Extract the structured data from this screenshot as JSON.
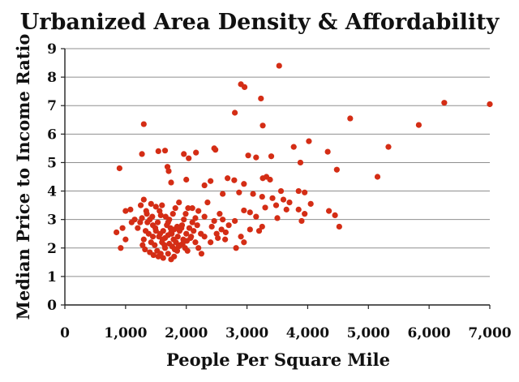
{
  "chart_data": {
    "type": "scatter",
    "title": "Urbanized Area Density & Affordability",
    "xlabel": "People Per Square Mile",
    "ylabel": "Median Price to Income Ratio",
    "xlim": [
      0,
      7000
    ],
    "ylim": [
      0,
      9
    ],
    "x_ticks": [
      0,
      1000,
      2000,
      3000,
      4000,
      5000,
      6000,
      7000
    ],
    "x_tick_labels": [
      "0",
      "1,000",
      "2,000",
      "3,000",
      "4,000",
      "5,000",
      "6,000",
      "7,000"
    ],
    "y_ticks": [
      0,
      1,
      2,
      3,
      4,
      5,
      6,
      7,
      8,
      9
    ],
    "y_tick_labels": [
      "0",
      "1",
      "2",
      "3",
      "4",
      "5",
      "6",
      "7",
      "8",
      "9"
    ],
    "grid": "horizontal",
    "legend": "none",
    "marker_color": "#d42d15",
    "points": [
      [
        3530,
        8.4
      ],
      [
        2900,
        7.75
      ],
      [
        2960,
        7.65
      ],
      [
        3230,
        7.25
      ],
      [
        6250,
        7.1
      ],
      [
        7000,
        7.05
      ],
      [
        2800,
        6.75
      ],
      [
        4700,
        6.55
      ],
      [
        1300,
        6.35
      ],
      [
        3260,
        6.3
      ],
      [
        5830,
        6.32
      ],
      [
        4020,
        5.75
      ],
      [
        3770,
        5.55
      ],
      [
        5330,
        5.55
      ],
      [
        2460,
        5.5
      ],
      [
        2480,
        5.45
      ],
      [
        4330,
        5.38
      ],
      [
        1540,
        5.4
      ],
      [
        1650,
        5.42
      ],
      [
        3020,
        5.25
      ],
      [
        1960,
        5.3
      ],
      [
        2160,
        5.35
      ],
      [
        1270,
        5.3
      ],
      [
        3150,
        5.18
      ],
      [
        3400,
        5.22
      ],
      [
        2040,
        5.15
      ],
      [
        3880,
        5.0
      ],
      [
        900,
        4.8
      ],
      [
        1690,
        4.85
      ],
      [
        1710,
        4.7
      ],
      [
        4480,
        4.75
      ],
      [
        5150,
        4.5
      ],
      [
        3320,
        4.5
      ],
      [
        2680,
        4.45
      ],
      [
        3380,
        4.4
      ],
      [
        3260,
        4.45
      ],
      [
        2400,
        4.35
      ],
      [
        2790,
        4.38
      ],
      [
        2950,
        4.25
      ],
      [
        2000,
        4.4
      ],
      [
        1750,
        4.3
      ],
      [
        2300,
        4.2
      ],
      [
        3560,
        4.0
      ],
      [
        3850,
        4.0
      ],
      [
        3950,
        3.95
      ],
      [
        2870,
        3.95
      ],
      [
        2600,
        3.9
      ],
      [
        3420,
        3.75
      ],
      [
        3600,
        3.7
      ],
      [
        3250,
        3.8
      ],
      [
        3100,
        3.9
      ],
      [
        4050,
        3.55
      ],
      [
        3700,
        3.6
      ],
      [
        3480,
        3.5
      ],
      [
        3300,
        3.42
      ],
      [
        3050,
        3.25
      ],
      [
        2950,
        3.32
      ],
      [
        3150,
        3.1
      ],
      [
        3650,
        3.35
      ],
      [
        3850,
        3.35
      ],
      [
        4350,
        3.3
      ],
      [
        4450,
        3.15
      ],
      [
        3950,
        3.2
      ],
      [
        3900,
        2.95
      ],
      [
        4520,
        2.75
      ],
      [
        2800,
        2.95
      ],
      [
        3500,
        3.05
      ],
      [
        3250,
        2.75
      ],
      [
        3050,
        2.65
      ],
      [
        2900,
        2.4
      ],
      [
        2820,
        2.0
      ],
      [
        2950,
        2.2
      ],
      [
        3200,
        2.6
      ],
      [
        2600,
        3.0
      ],
      [
        2700,
        2.8
      ],
      [
        2500,
        2.5
      ],
      [
        2400,
        2.2
      ],
      [
        2550,
        3.2
      ],
      [
        2650,
        2.55
      ],
      [
        2200,
        3.3
      ],
      [
        2300,
        3.1
      ],
      [
        2100,
        3.4
      ],
      [
        2150,
        3.05
      ],
      [
        850,
        2.55
      ],
      [
        950,
        2.7
      ],
      [
        1000,
        3.3
      ],
      [
        1080,
        3.35
      ],
      [
        1150,
        3.0
      ],
      [
        920,
        2.0
      ],
      [
        1000,
        2.3
      ],
      [
        1100,
        2.9
      ],
      [
        1200,
        2.7
      ],
      [
        1250,
        3.5
      ],
      [
        1300,
        3.7
      ],
      [
        1350,
        3.2
      ],
      [
        1400,
        3.0
      ],
      [
        1450,
        2.8
      ],
      [
        1500,
        2.6
      ],
      [
        1550,
        2.4
      ],
      [
        1600,
        2.2
      ],
      [
        1650,
        2.0
      ],
      [
        1700,
        1.8
      ],
      [
        1750,
        1.6
      ],
      [
        1800,
        1.7
      ],
      [
        1850,
        1.9
      ],
      [
        1900,
        2.1
      ],
      [
        1950,
        2.3
      ],
      [
        2000,
        2.5
      ],
      [
        2050,
        2.7
      ],
      [
        2100,
        2.9
      ],
      [
        2150,
        2.2
      ],
      [
        2200,
        2.0
      ],
      [
        2250,
        1.8
      ],
      [
        2300,
        2.4
      ],
      [
        1380,
        2.5
      ],
      [
        1420,
        2.2
      ],
      [
        1480,
        2.1
      ],
      [
        1520,
        1.9
      ],
      [
        1580,
        1.8
      ],
      [
        1620,
        2.6
      ],
      [
        1680,
        2.8
      ],
      [
        1720,
        3.0
      ],
      [
        1780,
        3.2
      ],
      [
        1820,
        3.4
      ],
      [
        1880,
        3.6
      ],
      [
        1920,
        2.7
      ],
      [
        1980,
        2.0
      ],
      [
        2020,
        1.9
      ],
      [
        2080,
        2.4
      ],
      [
        2120,
        2.6
      ],
      [
        2180,
        2.8
      ],
      [
        2240,
        2.5
      ],
      [
        1300,
        2.3
      ],
      [
        1330,
        2.6
      ],
      [
        1360,
        2.9
      ],
      [
        1440,
        3.1
      ],
      [
        1560,
        3.3
      ],
      [
        1600,
        3.5
      ],
      [
        1660,
        3.1
      ],
      [
        1700,
        2.9
      ],
      [
        1740,
        2.7
      ],
      [
        1760,
        2.5
      ],
      [
        1790,
        2.3
      ],
      [
        1830,
        2.2
      ],
      [
        1860,
        2.4
      ],
      [
        1890,
        2.6
      ],
      [
        1930,
        2.8
      ],
      [
        1960,
        3.0
      ],
      [
        1990,
        3.2
      ],
      [
        2030,
        3.4
      ],
      [
        1650,
        2.35
      ],
      [
        1700,
        2.45
      ],
      [
        1750,
        2.55
      ],
      [
        1800,
        2.65
      ],
      [
        1850,
        2.75
      ],
      [
        1720,
        2.15
      ],
      [
        1770,
        2.05
      ],
      [
        1810,
        1.95
      ],
      [
        1870,
        2.05
      ],
      [
        1940,
        2.15
      ],
      [
        2010,
        2.25
      ],
      [
        2070,
        2.35
      ],
      [
        1450,
        2.4
      ],
      [
        1490,
        2.7
      ],
      [
        1530,
        2.9
      ],
      [
        1570,
        2.5
      ],
      [
        1610,
        2.3
      ],
      [
        1640,
        2.1
      ],
      [
        1280,
        2.1
      ],
      [
        1320,
        1.95
      ],
      [
        1400,
        1.85
      ],
      [
        1460,
        1.75
      ],
      [
        1540,
        1.7
      ],
      [
        1620,
        1.65
      ],
      [
        1240,
        2.9
      ],
      [
        1270,
        3.05
      ],
      [
        1340,
        3.3
      ],
      [
        1420,
        3.55
      ],
      [
        1500,
        3.45
      ],
      [
        1580,
        3.15
      ],
      [
        2350,
        3.6
      ],
      [
        2420,
        2.75
      ],
      [
        2460,
        2.95
      ],
      [
        2520,
        2.35
      ],
      [
        2580,
        2.65
      ],
      [
        2640,
        2.3
      ]
    ]
  }
}
